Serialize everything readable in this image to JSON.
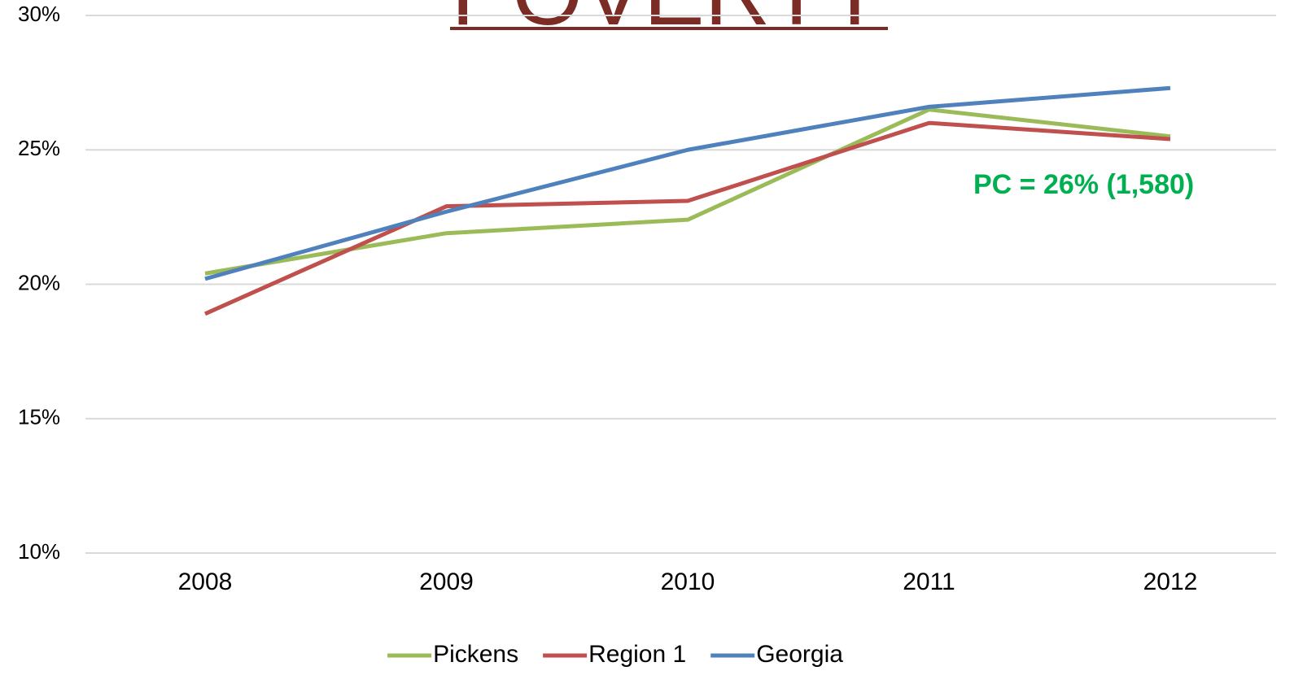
{
  "chart_data": {
    "type": "line",
    "title": "POVERTY",
    "categories": [
      "2008",
      "2009",
      "2010",
      "2011",
      "2012"
    ],
    "series": [
      {
        "name": "Pickens",
        "color": "#9bbb59",
        "values": [
          20.4,
          21.9,
          22.4,
          26.5,
          25.5
        ]
      },
      {
        "name": "Region 1",
        "color": "#c0504d",
        "values": [
          18.9,
          22.9,
          23.1,
          26.0,
          25.4
        ]
      },
      {
        "name": "Georgia",
        "color": "#4f81bd",
        "values": [
          20.2,
          22.7,
          25.0,
          26.6,
          27.3
        ]
      }
    ],
    "ylim": [
      10,
      30
    ],
    "yticks": [
      {
        "value": 10,
        "label": "10%"
      },
      {
        "value": 15,
        "label": "15%"
      },
      {
        "value": 20,
        "label": "20%"
      },
      {
        "value": 25,
        "label": "25%"
      },
      {
        "value": 30,
        "label": "30%"
      }
    ],
    "grid": true,
    "legend": "bottom",
    "annotation": "PC = 26% (1,580)"
  }
}
